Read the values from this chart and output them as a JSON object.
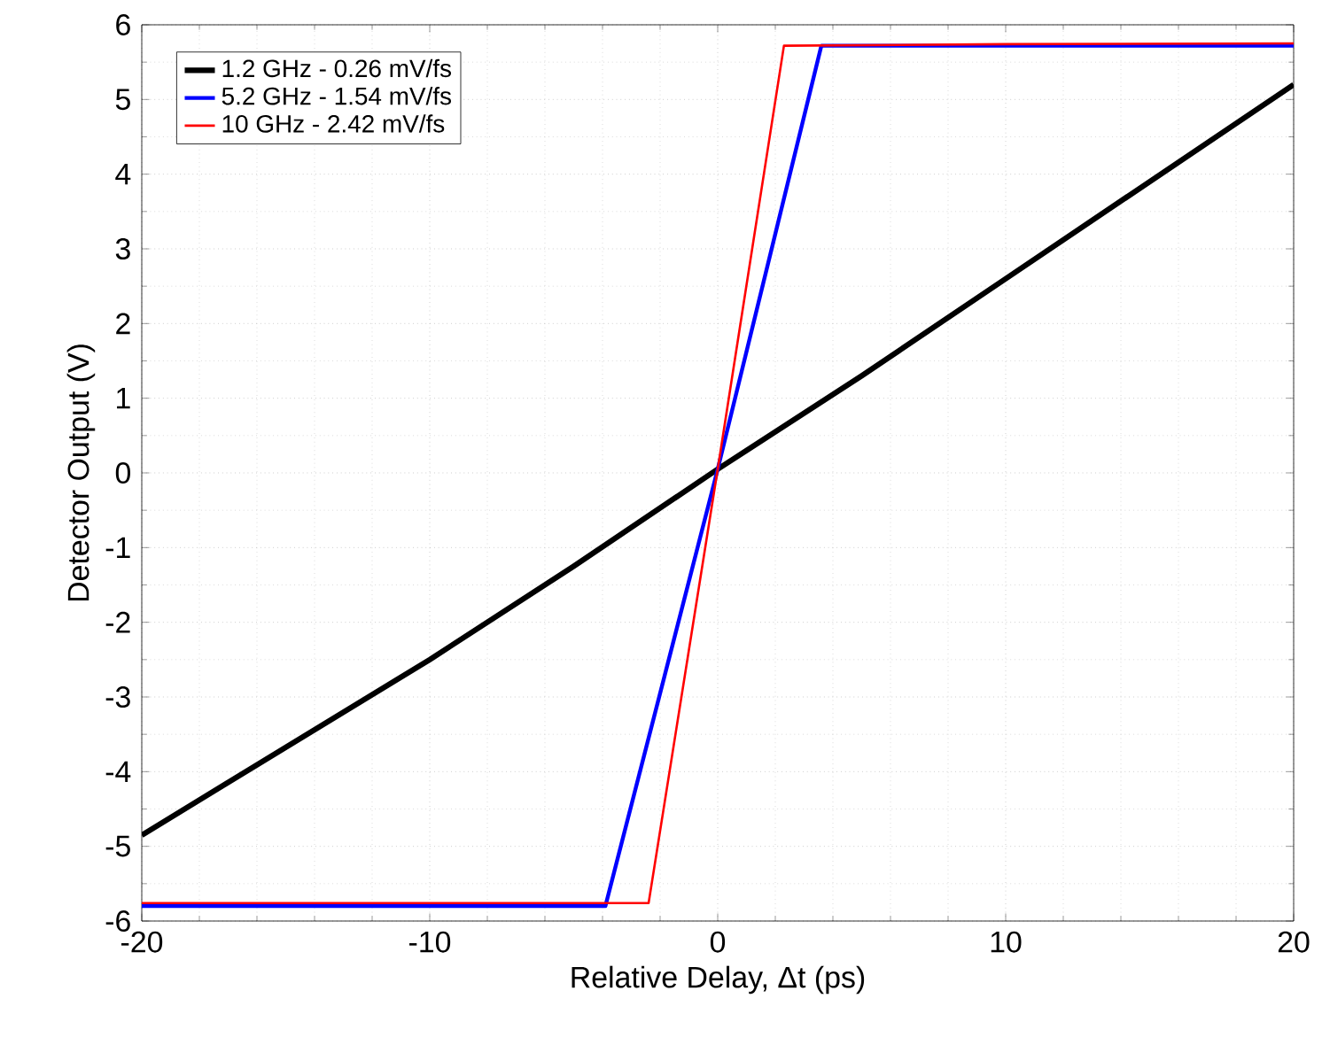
{
  "chart_data": {
    "type": "line",
    "xlabel": "Relative Delay, Δt (ps)",
    "ylabel": "Detector Output (V)",
    "xlim": [
      -20,
      20
    ],
    "xticks": [
      -20,
      -10,
      0,
      10,
      20
    ],
    "ylim": [
      -6,
      6
    ],
    "yticks": [
      -6,
      -5,
      -4,
      -3,
      -2,
      -1,
      0,
      1,
      2,
      3,
      4,
      5,
      6
    ],
    "grid": true,
    "legend": "top left",
    "line_style": "solid",
    "marker": "none",
    "series": [
      {
        "name": "1.2 GHz - 0.26 mV/fs",
        "color": "#000000",
        "x": [
          -20,
          -10,
          -5,
          0,
          5,
          10,
          20
        ],
        "values": [
          -4.85,
          -2.5,
          -1.25,
          0.05,
          1.3,
          2.6,
          5.2
        ]
      },
      {
        "name": "5.2 GHz - 1.54 mV/fs",
        "color": "#0000ff",
        "x": [
          -20,
          -10,
          -3.9,
          0,
          3.6,
          10,
          20
        ],
        "values": [
          -5.8,
          -5.8,
          -5.8,
          0.05,
          5.72,
          5.72,
          5.72
        ]
      },
      {
        "name": "10 GHz - 2.42 mV/fs",
        "color": "#ff0000",
        "x": [
          -20,
          -10,
          -2.4,
          0,
          2.3,
          10,
          20
        ],
        "values": [
          -5.76,
          -5.76,
          -5.76,
          0.05,
          5.72,
          5.74,
          5.75
        ]
      }
    ]
  }
}
